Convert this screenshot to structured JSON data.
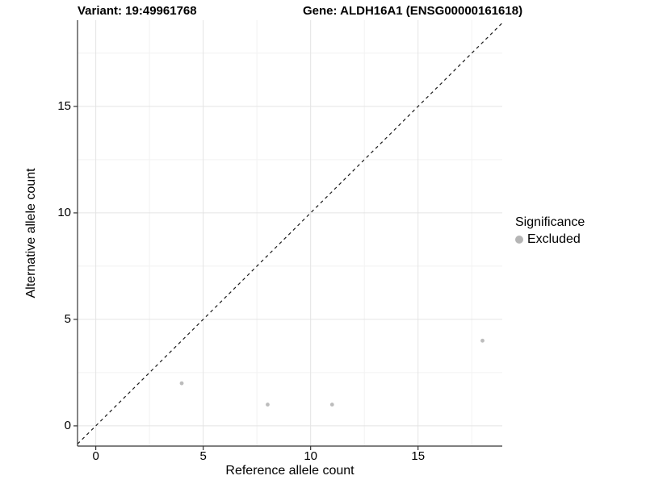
{
  "chart_data": {
    "type": "scatter",
    "title_left": "Variant: 19:49961768",
    "title_right": "Gene: ALDH16A1 (ENSG00000161618)",
    "xlabel": "Reference allele count",
    "ylabel": "Alternative allele count",
    "xlim": [
      -0.85,
      18.92
    ],
    "ylim": [
      -0.95,
      19.05
    ],
    "xticks": [
      0,
      5,
      10,
      15
    ],
    "yticks": [
      0,
      5,
      10,
      15
    ],
    "x_minor": [
      2.5,
      7.5,
      12.5,
      17.5
    ],
    "y_minor": [
      2.5,
      7.5,
      12.5,
      17.5
    ],
    "grid": "major+minor",
    "series": [
      {
        "name": "Excluded",
        "color": "#bcbcbc",
        "points": [
          [
            4,
            2
          ],
          [
            8,
            1
          ],
          [
            11,
            1
          ],
          [
            18,
            4
          ]
        ]
      }
    ],
    "reference_line": {
      "type": "identity y=x",
      "style": "dashed",
      "color": "#1a1a1a"
    },
    "legend": {
      "title": "Significance",
      "position": "right",
      "entries": [
        {
          "label": "Excluded",
          "color": "#b5b5b5"
        }
      ]
    }
  },
  "colors": {
    "background": "#ffffff",
    "grid_major": "#e4e4e4",
    "grid_minor": "#f2f2f2",
    "axis_line": "#333333",
    "tick_mark": "#333333",
    "point": "#bcbcbc",
    "text": "#000000"
  }
}
